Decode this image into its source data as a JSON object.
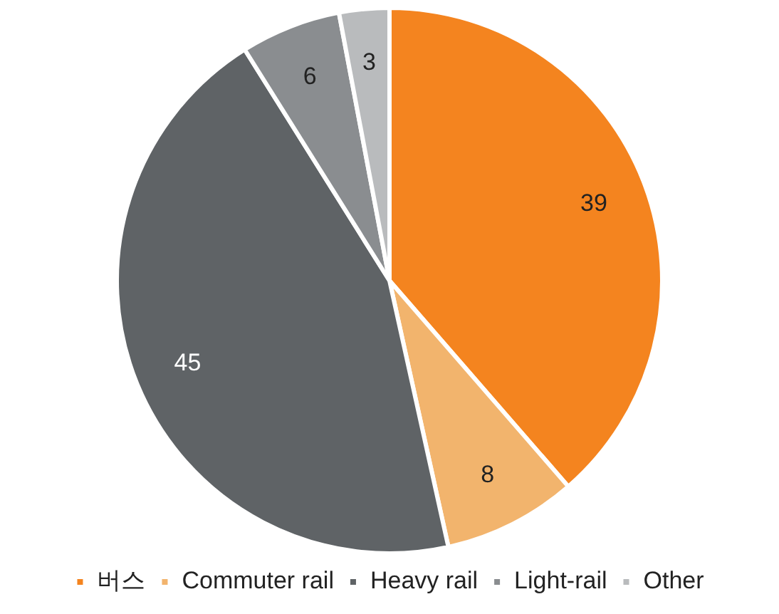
{
  "chart_data": {
    "type": "pie",
    "categories": [
      "버스",
      "Commuter rail",
      "Heavy rail",
      "Light-rail",
      "Other"
    ],
    "values": [
      39,
      8,
      45,
      6,
      3
    ],
    "colors": [
      "#f4841f",
      "#f2b46d",
      "#5f6366",
      "#8a8d90",
      "#b9bbbd"
    ],
    "data_labels": true,
    "legend": "bottom"
  }
}
